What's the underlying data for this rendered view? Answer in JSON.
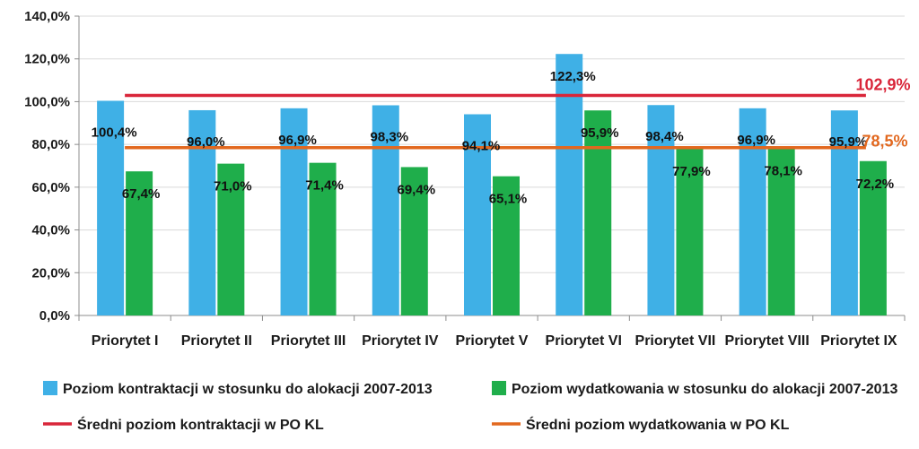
{
  "chart_data": {
    "type": "bar",
    "categories": [
      "Priorytet I",
      "Priorytet II",
      "Priorytet III",
      "Priorytet IV",
      "Priorytet V",
      "Priorytet VI",
      "Priorytet VII",
      "Priorytet VIII",
      "Priorytet IX"
    ],
    "series": [
      {
        "name": "Poziom kontraktacji w stosunku do alokacji 2007-2013",
        "color": "#3fb0e6",
        "values": [
          100.4,
          96.0,
          96.9,
          98.3,
          94.1,
          122.3,
          98.4,
          96.9,
          95.9
        ],
        "labels": [
          "100,4%",
          "96,0%",
          "96,9%",
          "98,3%",
          "94,1%",
          "122,3%",
          "98,4%",
          "96,9%",
          "95,9%"
        ]
      },
      {
        "name": "Poziom wydatkowania w stosunku do alokacji 2007-2013",
        "color": "#1fae4b",
        "values": [
          67.4,
          71.0,
          71.4,
          69.4,
          65.1,
          95.9,
          77.9,
          78.1,
          72.2
        ],
        "labels": [
          "67,4%",
          "71,0%",
          "71,4%",
          "69,4%",
          "65,1%",
          "95,9%",
          "77,9%",
          "78,1%",
          "72,2%"
        ]
      }
    ],
    "reference_lines": [
      {
        "name": "Średni poziom kontraktacji w PO KL",
        "value": 102.9,
        "label": "102,9%",
        "color": "#d9263a"
      },
      {
        "name": "Średni poziom wydatkowania w PO KL",
        "value": 78.5,
        "label": "78,5%",
        "color": "#e2681f"
      }
    ],
    "ylim": [
      0,
      140
    ],
    "yticks": [
      0,
      20,
      40,
      60,
      80,
      100,
      120,
      140
    ],
    "ytick_labels": [
      "0,0%",
      "20,0%",
      "40,0%",
      "60,0%",
      "80,0%",
      "100,0%",
      "120,0%",
      "140,0%"
    ],
    "grid": true,
    "legend_position": "bottom",
    "xlabel": "",
    "ylabel": "",
    "title": ""
  }
}
